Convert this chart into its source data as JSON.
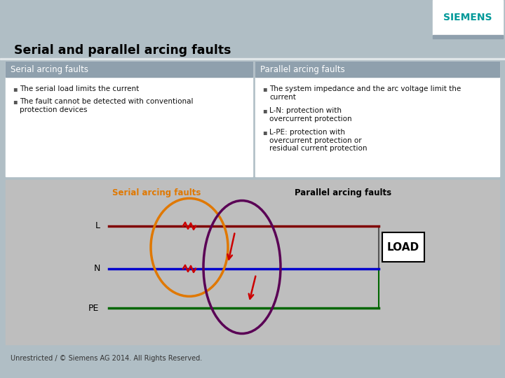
{
  "title": "Serial and parallel arcing faults",
  "siemens_color": "#009999",
  "bg_color": "#b0bec5",
  "header_bg": "#8fa0ad",
  "white": "#ffffff",
  "diagram_bg": "#bebebe",
  "left_panel_title": "Serial arcing faults",
  "right_panel_title": "Parallel arcing faults",
  "left_bullets": [
    "The serial load limits the current",
    "The fault cannot be detected with conventional\nprotection devices"
  ],
  "right_bullets": [
    "The system impedance and the arc voltage limit the\ncurrent",
    "L-N: protection with\novercurrent protection",
    "L-PE: protection with\novercurrent protection or\nresidual current protection"
  ],
  "footer": "Unrestricted / © Siemens AG 2014. All Rights Reserved.",
  "serial_label": "Serial arcing faults",
  "parallel_label": "Parallel arcing faults",
  "load_label": "LOAD",
  "orange_ellipse_color": "#e07800",
  "purple_ellipse_color": "#5a0055",
  "red_arrow_color": "#cc0000",
  "dark_red_line": "#800000",
  "blue_line": "#0000cc",
  "green_line": "#006600"
}
